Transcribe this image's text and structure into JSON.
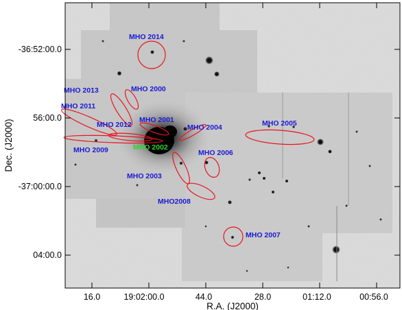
{
  "axes": {
    "xlabel": "R.A. (J2000)",
    "ylabel": "Dec. (J2000)",
    "xticks": [
      "16.0",
      "19:02:00.0",
      "44.0",
      "28.0",
      "01:12.0",
      "00:56.0"
    ],
    "yticks": [
      "-36:52:00.0",
      "56:00.0",
      "-37:00:00.0",
      "04:00.0"
    ]
  },
  "labels": [
    {
      "id": "mho2014",
      "text": "MHO 2014",
      "color": "blue"
    },
    {
      "id": "mho2013",
      "text": "MHO 2013",
      "color": "blue"
    },
    {
      "id": "mho2000",
      "text": "MHO 2000",
      "color": "blue"
    },
    {
      "id": "mho2011",
      "text": "MHO 2011",
      "color": "blue"
    },
    {
      "id": "mho2012",
      "text": "MHO 2012",
      "color": "blue"
    },
    {
      "id": "mho2001",
      "text": "MHO 2001",
      "color": "blue"
    },
    {
      "id": "mho2004",
      "text": "MHO 2004",
      "color": "blue"
    },
    {
      "id": "mho2005",
      "text": "MHO 2005",
      "color": "blue"
    },
    {
      "id": "mho2009",
      "text": "MHO 2009",
      "color": "blue"
    },
    {
      "id": "mho2002",
      "text": "MHO 2002",
      "color": "green"
    },
    {
      "id": "mho2006",
      "text": "MHO 2006",
      "color": "blue"
    },
    {
      "id": "mho2003",
      "text": "MHO 2003",
      "color": "blue"
    },
    {
      "id": "mho2008",
      "text": "MHO2008",
      "color": "blue"
    },
    {
      "id": "mho2007",
      "text": "MHO 2007",
      "color": "blue"
    }
  ],
  "colors": {
    "frame_bg": "#e0e0e0",
    "mosaic": "#cfcfcf",
    "outline": "#e8141e",
    "label_blue": "#1a1ad6",
    "label_green": "#2cd62c",
    "axis": "#000000"
  }
}
